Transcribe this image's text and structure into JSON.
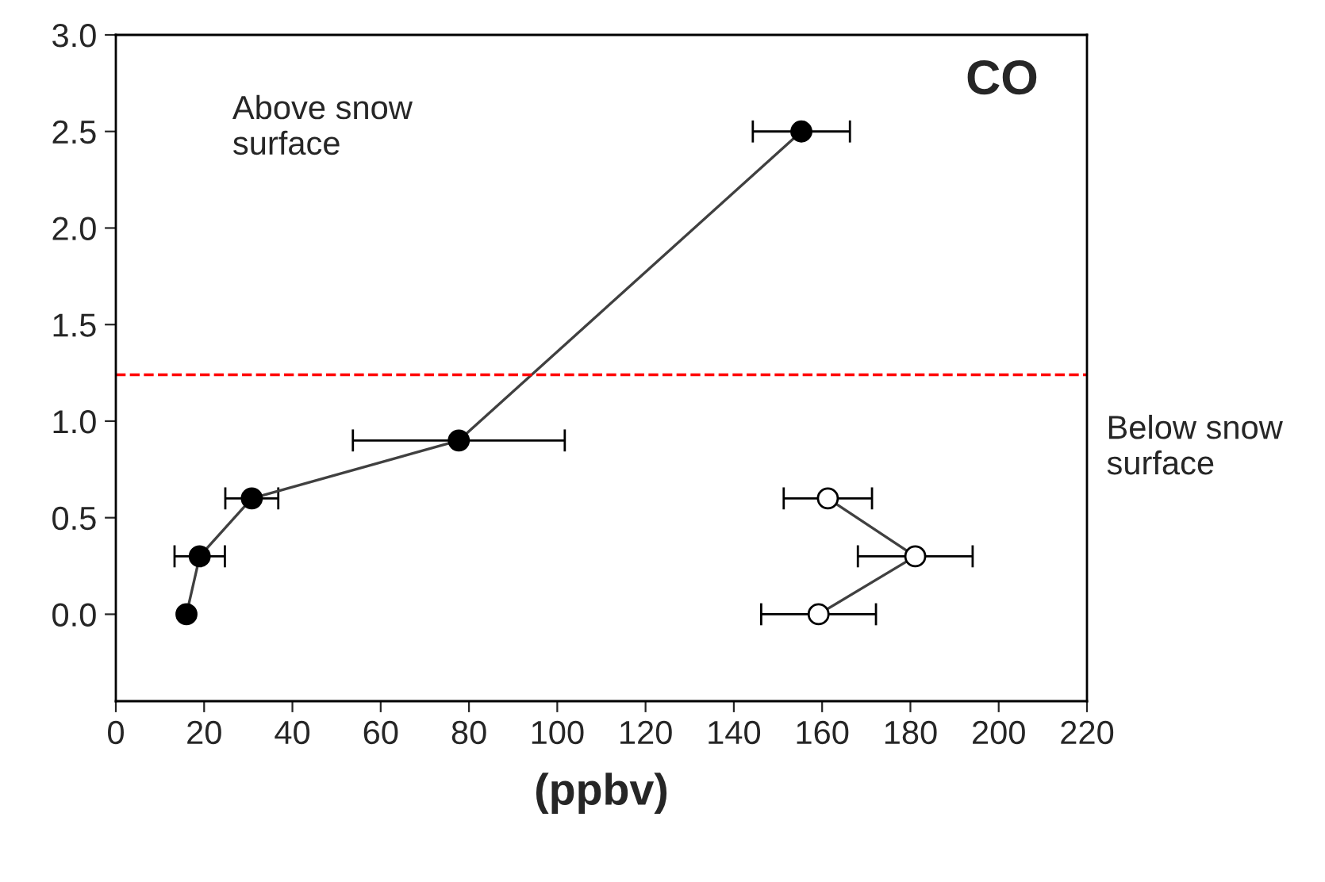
{
  "chart_data": {
    "type": "line",
    "title": "CO",
    "xlabel": "(ppbv)",
    "xlim": [
      0,
      220
    ],
    "xticks": [
      0,
      20,
      40,
      60,
      80,
      100,
      120,
      140,
      160,
      180,
      200,
      220
    ],
    "ylim": [
      -0.45,
      3.0
    ],
    "yticks": [
      {
        "value": 0,
        "label": "0.0"
      },
      0.5,
      {
        "value": 1,
        "label": "1.0"
      },
      1.5,
      {
        "value": 2,
        "label": "2.0"
      },
      2.5,
      {
        "value": 3,
        "label": "3.0"
      }
    ],
    "series": [
      {
        "color": "#000000",
        "x": [
          16,
          19,
          30.8,
          77.7,
          155.3
        ],
        "values": [
          0,
          0.3,
          0.6,
          0.9,
          2.5
        ],
        "xerrors": [
          null,
          5.7,
          6,
          24,
          11
        ]
      },
      {
        "color": "#ffffff",
        "x": [
          159.2,
          181.1,
          161.3
        ],
        "values": [
          0,
          0.3,
          0.6
        ],
        "xerrors": [
          13,
          13,
          10
        ]
      }
    ],
    "marker": "circle",
    "grid": false,
    "legend": false,
    "ref_lines": [
      {
        "axis": "y",
        "value": 1.24,
        "color": "#ff0000",
        "line_style": "dashed"
      }
    ],
    "annotations": [
      "Above snow\nsurface",
      "Below snow\nsurface"
    ]
  }
}
